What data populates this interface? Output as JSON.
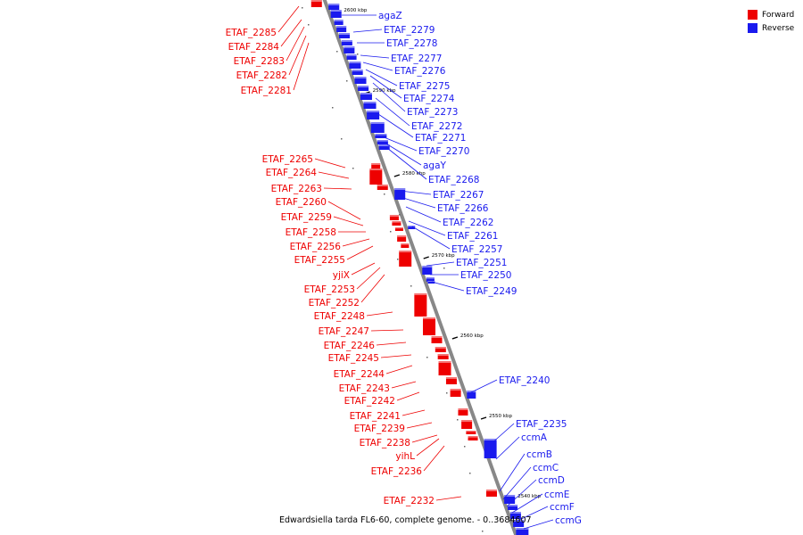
{
  "caption": "Edwardsiella tarda FL6-60, complete genome. - 0..3684607",
  "legend": [
    {
      "label": "Forward",
      "color": "#ee0000"
    },
    {
      "label": "Reverse",
      "color": "#1a1aee"
    }
  ],
  "colors": {
    "forward": "#ee0000",
    "reverse": "#1a1aee",
    "backbone": "#888888"
  },
  "ticks": [
    "2600 kbp",
    "2590 kbp",
    "2580 kbp",
    "2570 kbp",
    "2560 kbp",
    "2550 kbp",
    "2540 kbp"
  ],
  "genes": {
    "reverse": [
      "agaZ",
      "ETAF_2279",
      "ETAF_2278",
      "ETAF_2277",
      "ETAF_2276",
      "ETAF_2275",
      "ETAF_2274",
      "ETAF_2273",
      "ETAF_2272",
      "ETAF_2271",
      "ETAF_2270",
      "agaY",
      "ETAF_2268",
      "ETAF_2267",
      "ETAF_2266",
      "ETAF_2262",
      "ETAF_2261",
      "ETAF_2257",
      "ETAF_2251",
      "ETAF_2250",
      "ETAF_2249",
      "ETAF_2240",
      "ETAF_2235",
      "ccmA",
      "ccmB",
      "ccmC",
      "ccmD",
      "ccmE",
      "ccmF",
      "ccmG"
    ],
    "forward": [
      "ETAF_2285",
      "ETAF_2284",
      "ETAF_2283",
      "ETAF_2282",
      "ETAF_2281",
      "ETAF_2265",
      "ETAF_2264",
      "ETAF_2263",
      "ETAF_2260",
      "ETAF_2259",
      "ETAF_2258",
      "ETAF_2256",
      "ETAF_2255",
      "yjiX",
      "ETAF_2253",
      "ETAF_2252",
      "ETAF_2248",
      "ETAF_2247",
      "ETAF_2246",
      "ETAF_2245",
      "ETAF_2244",
      "ETAF_2243",
      "ETAF_2242",
      "ETAF_2241",
      "ETAF_2239",
      "ETAF_2238",
      "yihL",
      "ETAF_2236",
      "ETAF_2232"
    ]
  }
}
